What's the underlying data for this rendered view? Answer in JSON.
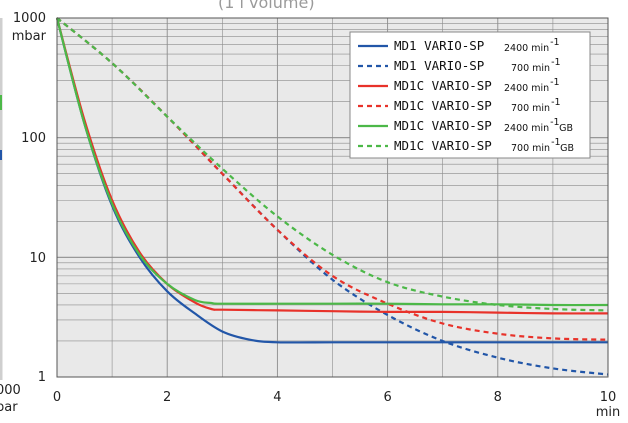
{
  "chart_data": {
    "type": "line",
    "top_caption_fragment": "(1 l volume)",
    "left_edge_labels": [
      "000",
      "bar"
    ],
    "y_unit": "mbar",
    "x_unit": "min",
    "xlim": [
      0,
      10
    ],
    "ylim": [
      1,
      1000
    ],
    "y_scale": "log",
    "x_ticks": [
      0,
      2,
      4,
      6,
      8,
      10
    ],
    "y_ticks": [
      1,
      10,
      100,
      1000
    ],
    "grid": true,
    "legend_position": "top-right",
    "colors": {
      "blue": "#2256a8",
      "red": "#e8322a",
      "green": "#4cb848",
      "plot_bg": "#e9e9e9",
      "grid": "#8c8c8c"
    },
    "series": [
      {
        "name": "MD1 VARIO-SP",
        "rpm": "2400 min",
        "suffix": "",
        "color": "#2256a8",
        "dash": false,
        "x": [
          0,
          0.5,
          1,
          1.5,
          2,
          2.5,
          3,
          3.5,
          4,
          5,
          6,
          7,
          8,
          9,
          10
        ],
        "y": [
          1000,
          130,
          27,
          10,
          5.2,
          3.4,
          2.4,
          2.05,
          1.95,
          1.95,
          1.95,
          1.95,
          1.95,
          1.95,
          1.95
        ]
      },
      {
        "name": "MD1 VARIO-SP",
        "rpm": "700 min",
        "suffix": "",
        "color": "#2256a8",
        "dash": true,
        "x": [
          0,
          1,
          2,
          3,
          4,
          5,
          6,
          7,
          8,
          9,
          10
        ],
        "y": [
          1000,
          420,
          150,
          50,
          17,
          6.5,
          3.3,
          2,
          1.45,
          1.18,
          1.05
        ]
      },
      {
        "name": "MD1C VARIO-SP",
        "rpm": "2400 min",
        "suffix": "",
        "color": "#e8322a",
        "dash": false,
        "x": [
          0,
          0.5,
          1,
          1.5,
          2,
          2.5,
          2.8,
          3,
          4,
          5,
          6,
          7,
          8,
          9,
          10
        ],
        "y": [
          1000,
          140,
          30,
          11,
          6,
          4.2,
          3.7,
          3.65,
          3.6,
          3.55,
          3.5,
          3.5,
          3.45,
          3.4,
          3.4
        ]
      },
      {
        "name": "MD1C VARIO-SP",
        "rpm": "700 min",
        "suffix": "",
        "color": "#e8322a",
        "dash": true,
        "x": [
          0,
          1,
          2,
          3,
          4,
          5,
          6,
          7,
          8,
          9,
          10
        ],
        "y": [
          1000,
          420,
          150,
          50,
          17,
          7,
          4.1,
          2.8,
          2.3,
          2.1,
          2.05
        ]
      },
      {
        "name": "MD1C VARIO-SP",
        "rpm": "2400 min",
        "suffix": "GB",
        "color": "#4cb848",
        "dash": false,
        "x": [
          0,
          0.5,
          1,
          1.5,
          2,
          2.5,
          2.8,
          3,
          4,
          5,
          6,
          7,
          8,
          9,
          10
        ],
        "y": [
          1000,
          130,
          28,
          10.5,
          6,
          4.4,
          4.15,
          4.1,
          4.1,
          4.1,
          4.1,
          4.05,
          4.05,
          4.0,
          4.0
        ]
      },
      {
        "name": "MD1C VARIO-SP",
        "rpm": "700 min",
        "suffix": "GB",
        "color": "#4cb848",
        "dash": true,
        "x": [
          0,
          1,
          2,
          3,
          4,
          5,
          6,
          7,
          8,
          9,
          10
        ],
        "y": [
          1000,
          420,
          150,
          55,
          22,
          10.5,
          6.2,
          4.7,
          4.0,
          3.7,
          3.6
        ]
      }
    ]
  }
}
